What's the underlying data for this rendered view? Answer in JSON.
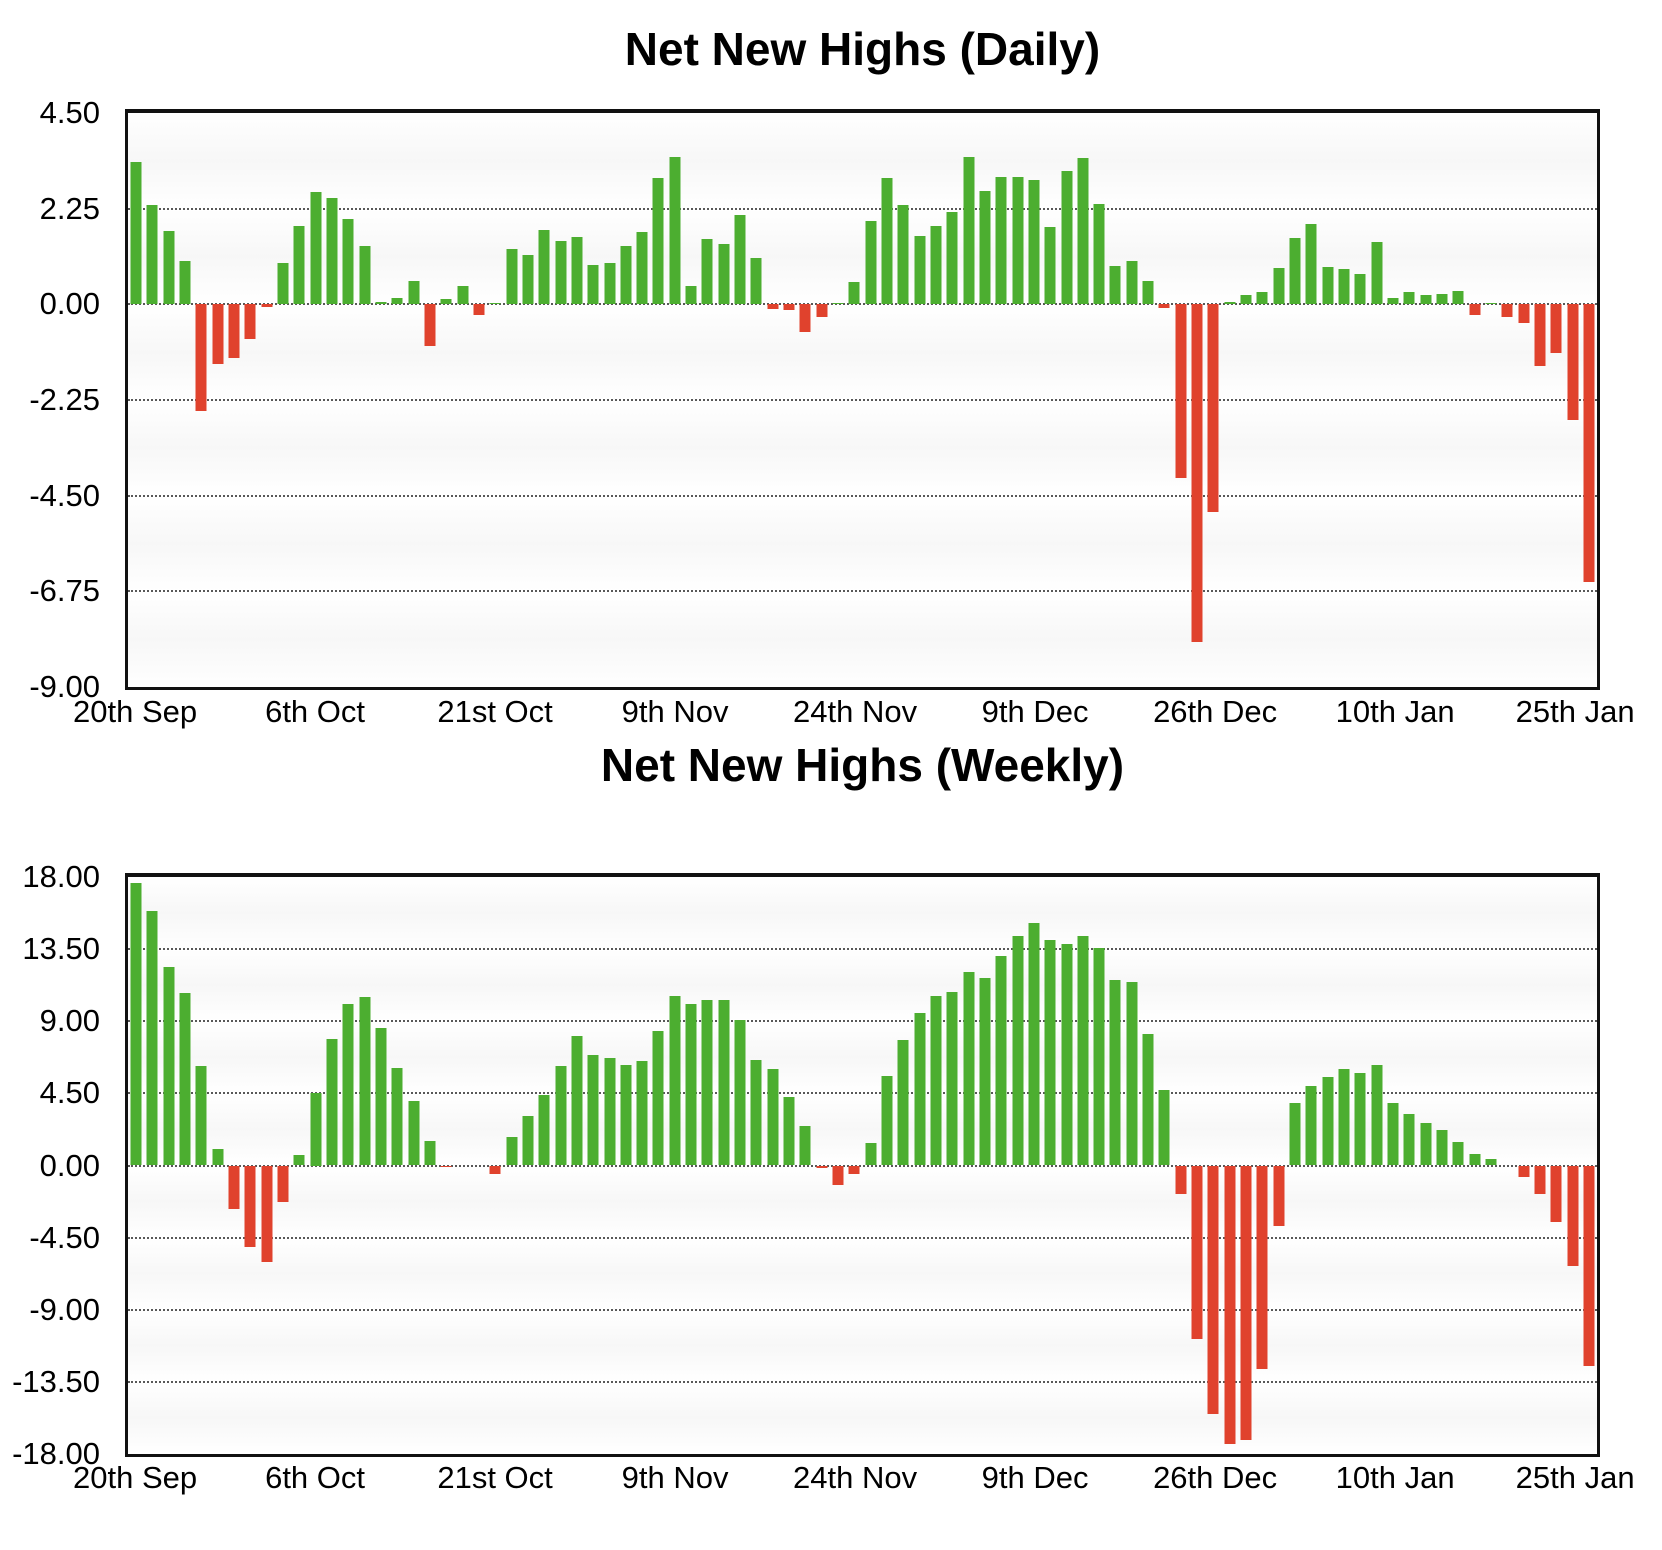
{
  "chart_data": [
    {
      "type": "bar",
      "title": "Net New Highs (Daily)",
      "x_tick_labels": [
        "20th Sep",
        "6th Oct",
        "21st Oct",
        "9th Nov",
        "24th Nov",
        "9th Dec",
        "26th Dec",
        "10th Jan",
        "25th Jan"
      ],
      "y_tick_labels": [
        "4.50",
        "2.25",
        "0.00",
        "-2.25",
        "-4.50",
        "-6.75",
        "-9.00"
      ],
      "ylim": [
        -9.0,
        4.5
      ],
      "grid": "dotted-horizontal",
      "legend": "none",
      "positive_color": "#4CAE30",
      "negative_color": "#E0422D",
      "values": [
        3.35,
        2.33,
        1.72,
        1.01,
        -2.5,
        -1.4,
        -1.27,
        -0.81,
        -0.07,
        0.98,
        1.85,
        2.65,
        2.5,
        2.0,
        1.38,
        0.05,
        0.16,
        0.56,
        -0.97,
        0.12,
        0.42,
        -0.25,
        0.03,
        1.3,
        1.15,
        1.75,
        1.48,
        1.58,
        0.92,
        0.97,
        1.37,
        1.69,
        2.97,
        3.46,
        0.44,
        1.53,
        1.41,
        2.09,
        1.09,
        -0.12,
        -0.13,
        -0.64,
        -0.29,
        0.03,
        0.53,
        1.97,
        2.97,
        2.34,
        1.6,
        1.85,
        2.18,
        3.46,
        2.67,
        2.99,
        2.99,
        2.92,
        1.83,
        3.13,
        3.45,
        2.36,
        0.89,
        1.03,
        0.54,
        -0.08,
        -4.08,
        -7.95,
        -4.89,
        0.06,
        0.21,
        0.29,
        0.86,
        1.57,
        1.9,
        0.87,
        0.82,
        0.72,
        1.46,
        0.14,
        0.28,
        0.21,
        0.25,
        0.32,
        -0.25,
        0.03,
        -0.3,
        -0.45,
        -1.45,
        -1.15,
        -2.72,
        -6.52
      ]
    },
    {
      "type": "bar",
      "title": "Net New Highs (Weekly)",
      "x_tick_labels": [
        "20th Sep",
        "6th Oct",
        "21st Oct",
        "9th Nov",
        "24th Nov",
        "9th Dec",
        "26th Dec",
        "10th Jan",
        "25th Jan"
      ],
      "y_tick_labels": [
        "18.00",
        "13.50",
        "9.00",
        "4.50",
        "0.00",
        "-4.50",
        "-9.00",
        "-13.50",
        "-18.00"
      ],
      "ylim": [
        -18.0,
        18.0
      ],
      "grid": "dotted-horizontal",
      "legend": "none",
      "positive_color": "#4CAE30",
      "negative_color": "#E0422D",
      "values": [
        17.6,
        15.9,
        12.4,
        10.75,
        6.2,
        1.05,
        -2.7,
        -5.1,
        -6.05,
        -2.3,
        0.65,
        4.5,
        7.9,
        10.1,
        10.5,
        8.6,
        6.1,
        4.05,
        1.5,
        -0.1,
        0,
        0,
        -0.5,
        1.75,
        3.1,
        4.4,
        6.2,
        8.05,
        6.9,
        6.7,
        6.3,
        6.55,
        8.4,
        10.6,
        10.05,
        10.3,
        10.3,
        9.05,
        6.6,
        6.05,
        4.3,
        2.45,
        -0.15,
        -1.2,
        -0.55,
        1.4,
        5.6,
        7.8,
        9.5,
        10.55,
        10.8,
        12.1,
        11.7,
        13.1,
        14.3,
        15.1,
        14.1,
        13.8,
        14.3,
        13.6,
        11.55,
        11.45,
        8.2,
        4.7,
        -1.8,
        -10.8,
        -15.5,
        -17.4,
        -17.1,
        -12.7,
        -3.75,
        3.9,
        4.95,
        5.5,
        6.0,
        5.8,
        6.25,
        3.9,
        3.2,
        2.65,
        2.2,
        1.45,
        0.7,
        0.4,
        0,
        -0.7,
        -1.75,
        -3.5,
        -6.3,
        -12.5
      ]
    }
  ]
}
